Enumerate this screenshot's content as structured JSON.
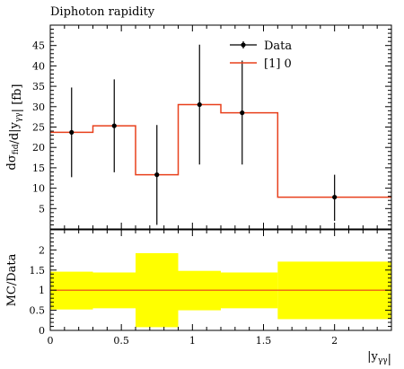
{
  "chart_data": [
    {
      "type": "line",
      "panel": "main",
      "title": "Diphoton rapidity",
      "ylabel": "dσ_fid/d|y_γγ| [fb]",
      "xlabel": "",
      "xlim": [
        0,
        2.4
      ],
      "ylim": [
        0,
        50
      ],
      "x_ticks": [
        0,
        0.5,
        1,
        1.5,
        2
      ],
      "x_tick_labels": [],
      "y_ticks": [
        5,
        10,
        15,
        20,
        25,
        30,
        35,
        40,
        45
      ],
      "y_tick_labels": [
        "5",
        "10",
        "15",
        "20",
        "25",
        "30",
        "35",
        "40",
        "45"
      ],
      "legend_position": "top-right",
      "series": [
        {
          "name": "Data",
          "style": "points-with-error-bars",
          "color": "#000000",
          "x": [
            0.15,
            0.45,
            0.75,
            1.05,
            1.35,
            2.0
          ],
          "y": [
            23.7,
            25.3,
            13.3,
            30.5,
            28.5,
            7.8
          ],
          "y_err_low": [
            11.0,
            11.4,
            12.3,
            14.7,
            12.7,
            5.8
          ],
          "y_err_high": [
            11.0,
            11.4,
            12.2,
            14.7,
            12.8,
            5.5
          ]
        },
        {
          "name": "[1] 0",
          "style": "step",
          "color": "#e8401c",
          "bin_edges": [
            0,
            0.3,
            0.6,
            0.9,
            1.2,
            1.6,
            2.4
          ],
          "values": [
            23.7,
            25.3,
            13.3,
            30.5,
            28.5,
            7.8
          ]
        }
      ]
    },
    {
      "type": "area",
      "panel": "ratio",
      "ylabel": "MC/Data",
      "xlabel": "|y_γγ|",
      "xlim": [
        0,
        2.4
      ],
      "ylim": [
        0,
        2.5
      ],
      "x_ticks": [
        0,
        0.5,
        1,
        1.5,
        2
      ],
      "x_tick_labels": [
        "0",
        "0.5",
        "1",
        "1.5",
        "2"
      ],
      "y_ticks": [
        0,
        0.5,
        1,
        1.5,
        2
      ],
      "y_tick_labels": [
        "0",
        "0.5",
        "1",
        "1.5",
        "2"
      ],
      "band": {
        "color": "#ffff00",
        "bin_edges": [
          0,
          0.3,
          0.6,
          0.9,
          1.2,
          1.6,
          2.4
        ],
        "low": [
          0.52,
          0.55,
          0.08,
          0.5,
          0.55,
          0.28
        ],
        "high": [
          1.46,
          1.44,
          1.92,
          1.48,
          1.44,
          1.71
        ]
      },
      "ratio_line": {
        "color": "#e8401c",
        "value": 1
      }
    }
  ]
}
